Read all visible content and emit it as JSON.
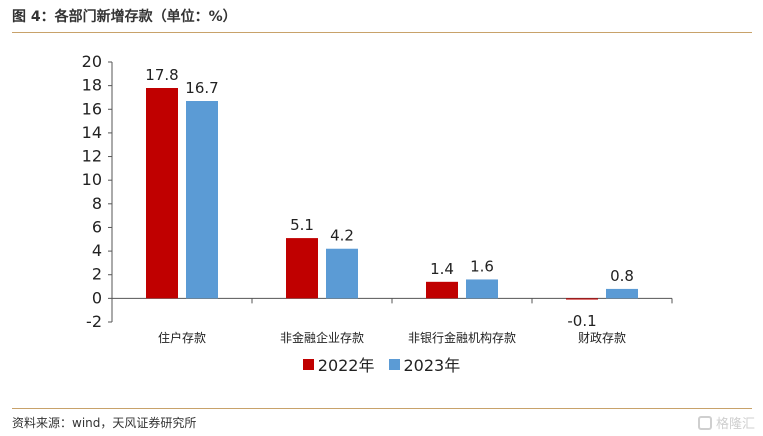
{
  "header": {
    "title": "图 4：各部门新增存款（单位：%）"
  },
  "footer": {
    "source": "资料来源：wind，天风证券研究所",
    "watermark": "格隆汇"
  },
  "chart_data": {
    "type": "bar",
    "categories": [
      "住户存款",
      "非金融企业存款",
      "非银行金融机构存款",
      "财政存款"
    ],
    "series": [
      {
        "name": "2022年",
        "values": [
          17.8,
          5.1,
          1.4,
          -0.1
        ],
        "color": "#c00000"
      },
      {
        "name": "2023年",
        "values": [
          16.7,
          4.2,
          1.6,
          0.8
        ],
        "color": "#5b9bd5"
      }
    ],
    "data_labels": [
      [
        "17.8",
        "5.1",
        "1.4",
        "-0.1"
      ],
      [
        "16.7",
        "4.2",
        "1.6",
        "0.8"
      ]
    ],
    "yticks": [
      "20",
      "18",
      "16",
      "14",
      "12",
      "10",
      "8",
      "6",
      "4",
      "2",
      "0",
      "-2"
    ],
    "ylim": [
      -2,
      20
    ],
    "legend_position": "bottom",
    "grid": false
  }
}
